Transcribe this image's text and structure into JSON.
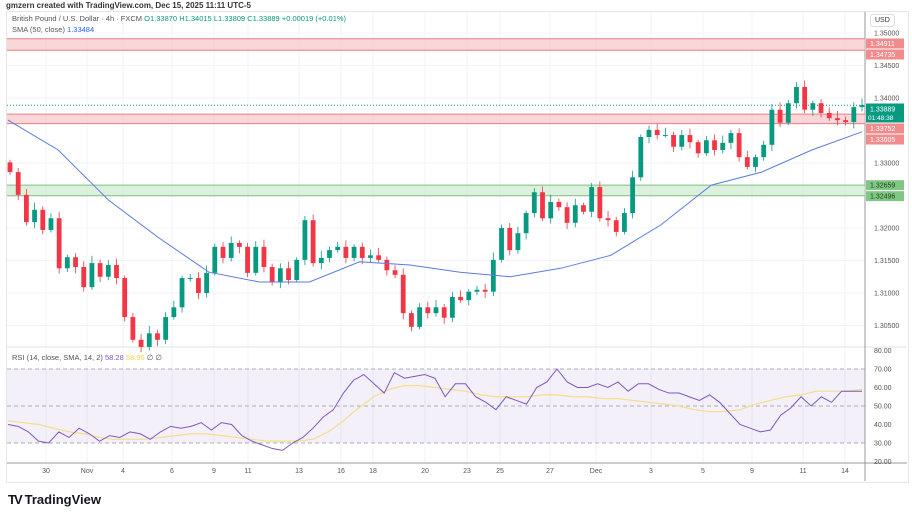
{
  "credit": "gmzern created with TradingView.com, Dec 15, 2025 11:11 UTC-5",
  "legend": {
    "symbol": "British Pound / U.S. Dollar · 4h · FXCM",
    "open": "O1.33870",
    "high": "H1.34015",
    "low": "L1.33809",
    "close": "C1.33889",
    "change": "+0.00019 (+0.01%)",
    "sma_label": "SMA (50, close)",
    "sma_value": "1.33484",
    "rsi_label": "RSI (14, close, SMA, 14, 2)",
    "rsi_value": "58.28",
    "rsi_sma_value": "58.96",
    "rsi_extra": "∅ ∅"
  },
  "currency": "USD",
  "logo_text": "TradingView",
  "colors": {
    "up": "#089981",
    "down": "#f23645",
    "sma": "#5b7be0",
    "rsi": "#7e57c2",
    "rsi_sma": "#f5dd8a",
    "resistance": "#f7c5c8",
    "support": "#cfe9cf"
  },
  "chart_data": [
    {
      "type": "candlestick",
      "title": "British Pound / U.S. Dollar · 4h · FXCM",
      "ylim": [
        1.301,
        1.352
      ],
      "yticks": [
        "1.35000",
        "1.34500",
        "1.34000",
        "1.33000",
        "1.32000",
        "1.31500",
        "1.31000",
        "1.30500"
      ],
      "yticks_values": [
        1.35,
        1.345,
        1.34,
        1.33,
        1.32,
        1.315,
        1.31,
        1.305
      ],
      "xticks": [
        "30",
        "Nov",
        "4",
        "6",
        "9",
        "11",
        "13",
        "16",
        "18",
        "20",
        "23",
        "25",
        "27",
        "Dec",
        "3",
        "5",
        "9",
        "11",
        "14"
      ],
      "closes": [
        1.3286,
        1.3251,
        1.3209,
        1.3228,
        1.3197,
        1.3215,
        1.3138,
        1.3155,
        1.314,
        1.3109,
        1.3146,
        1.3125,
        1.3143,
        1.3123,
        1.3063,
        1.3028,
        1.3017,
        1.3038,
        1.3028,
        1.3063,
        1.3078,
        1.3123,
        1.3123,
        1.31,
        1.3131,
        1.3171,
        1.3154,
        1.3177,
        1.3171,
        1.3131,
        1.3171,
        1.314,
        1.3117,
        1.3138,
        1.312,
        1.3151,
        1.3212,
        1.3146,
        1.3154,
        1.3166,
        1.3171,
        1.3154,
        1.3171,
        1.3154,
        1.3158,
        1.3151,
        1.3135,
        1.3128,
        1.3069,
        1.3048,
        1.3078,
        1.3069,
        1.3078,
        1.3062,
        1.3094,
        1.3089,
        1.3102,
        1.3105,
        1.3102,
        1.3151,
        1.32,
        1.3166,
        1.3192,
        1.3223,
        1.3255,
        1.3215,
        1.324,
        1.3232,
        1.3208,
        1.3235,
        1.3225,
        1.3263,
        1.3215,
        1.3212,
        1.3194,
        1.3223,
        1.3278,
        1.334,
        1.3351,
        1.3343,
        1.3343,
        1.3325,
        1.3343,
        1.3332,
        1.3315,
        1.3335,
        1.332,
        1.3331,
        1.3346,
        1.3309,
        1.3294,
        1.3309,
        1.3328,
        1.3382,
        1.3362,
        1.3392,
        1.3417,
        1.3382,
        1.3392,
        1.3377,
        1.3369,
        1.3366,
        1.3363,
        1.3386,
        1.3389
      ],
      "sma_50": [
        1.3366,
        1.332,
        1.3243,
        1.3185,
        1.3132,
        1.3117,
        1.3117,
        1.3148,
        1.3143,
        1.3132,
        1.3125,
        1.3138,
        1.3158,
        1.3205,
        1.3266,
        1.3286,
        1.332,
        1.3348
      ],
      "zones": [
        {
          "kind": "resistance",
          "top": "1.34911",
          "bottom": "1.34735",
          "top_value": 1.34911,
          "bottom_value": 1.34735
        },
        {
          "kind": "resistance",
          "top": "1.33752",
          "bottom": "1.33605",
          "top_value": 1.33752,
          "bottom_value": 1.33605
        },
        {
          "kind": "support",
          "top": "1.32659",
          "bottom": "1.32496",
          "top_value": 1.32659,
          "bottom_value": 1.32496
        }
      ],
      "last_price": "1.33889",
      "last_price_value": 1.33889,
      "countdown": "01:48:38"
    },
    {
      "type": "line",
      "title": "RSI (14, close, SMA, 14, 2)",
      "ylim": [
        17,
        82
      ],
      "yticks": [
        "80.00",
        "70.00",
        "60.00",
        "50.00",
        "40.00",
        "30.00",
        "20.00"
      ],
      "yticks_values": [
        80,
        70,
        60,
        50,
        40,
        30,
        20
      ],
      "bands": [
        70,
        50,
        30
      ],
      "rsi": [
        40,
        39,
        36,
        31,
        30,
        36,
        33,
        38,
        35,
        31,
        34,
        33,
        36,
        35,
        32,
        36,
        39,
        38,
        39,
        41,
        37,
        41,
        40,
        34,
        31,
        29,
        27,
        26,
        30,
        33,
        38,
        44,
        48,
        57,
        64,
        67,
        62,
        57,
        68,
        65,
        66,
        67,
        65,
        55,
        62,
        62,
        55,
        52,
        48,
        55,
        53,
        51,
        60,
        63,
        70,
        63,
        60,
        60,
        62,
        60,
        63,
        58,
        62,
        62,
        59,
        57,
        57,
        55,
        53,
        56,
        52,
        46,
        40,
        38,
        36,
        37,
        45,
        49,
        55,
        50,
        55,
        52,
        58,
        58,
        58
      ],
      "rsi_sma": [
        42,
        41,
        40,
        38,
        36,
        35,
        33,
        32,
        32,
        32,
        33,
        34,
        35,
        35,
        34,
        33,
        32,
        31,
        31,
        31,
        32,
        36,
        42,
        49,
        55,
        59,
        61,
        61,
        60,
        59,
        58,
        56,
        55,
        55,
        55,
        56,
        56,
        55,
        55,
        54,
        54,
        53,
        52,
        51,
        50,
        48,
        47,
        47,
        48,
        51,
        53,
        55,
        56,
        58,
        58,
        58,
        59
      ]
    }
  ]
}
